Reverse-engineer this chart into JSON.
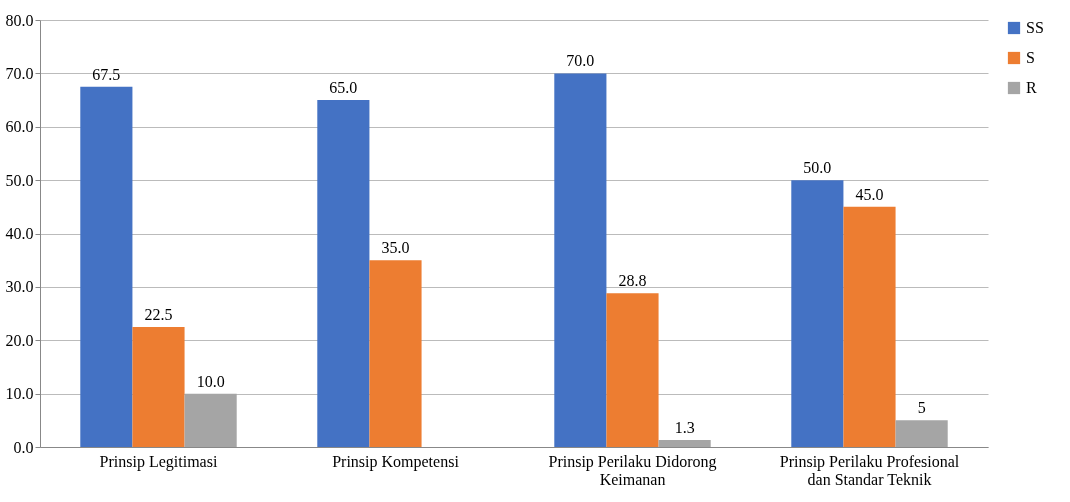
{
  "chart_data": {
    "type": "bar",
    "categories": [
      "Prinsip Legitimasi",
      "Prinsip Kompetensi",
      "Prinsip Perilaku Didorong Keimanan",
      "Prinsip Perilaku Profesional dan Standar Teknik"
    ],
    "series": [
      {
        "name": "SS",
        "color": "#4472c4",
        "values": [
          67.5,
          65.0,
          70.0,
          50.0
        ],
        "value_labels": [
          "67.5",
          "65.0",
          "70.0",
          "50.0"
        ]
      },
      {
        "name": "S",
        "color": "#ed7d31",
        "values": [
          22.5,
          35.0,
          28.8,
          45.0
        ],
        "value_labels": [
          "22.5",
          "35.0",
          "28.8",
          "45.0"
        ]
      },
      {
        "name": "R",
        "color": "#a5a5a5",
        "values": [
          10.0,
          null,
          1.3,
          5
        ],
        "value_labels": [
          "10.0",
          null,
          "1.3",
          "5"
        ]
      }
    ],
    "ylim": [
      0,
      80
    ],
    "yticks": [
      {
        "value": 0,
        "label": "0.0"
      },
      {
        "value": 10,
        "label": "10.0"
      },
      {
        "value": 20,
        "label": "20.0"
      },
      {
        "value": 30,
        "label": "30.0"
      },
      {
        "value": 40,
        "label": "40.0"
      },
      {
        "value": 50,
        "label": "50.0"
      },
      {
        "value": 60,
        "label": "60.0"
      },
      {
        "value": 70,
        "label": "70.0"
      },
      {
        "value": 80,
        "label": "80.0"
      }
    ],
    "grid": "y",
    "legend": "right"
  }
}
